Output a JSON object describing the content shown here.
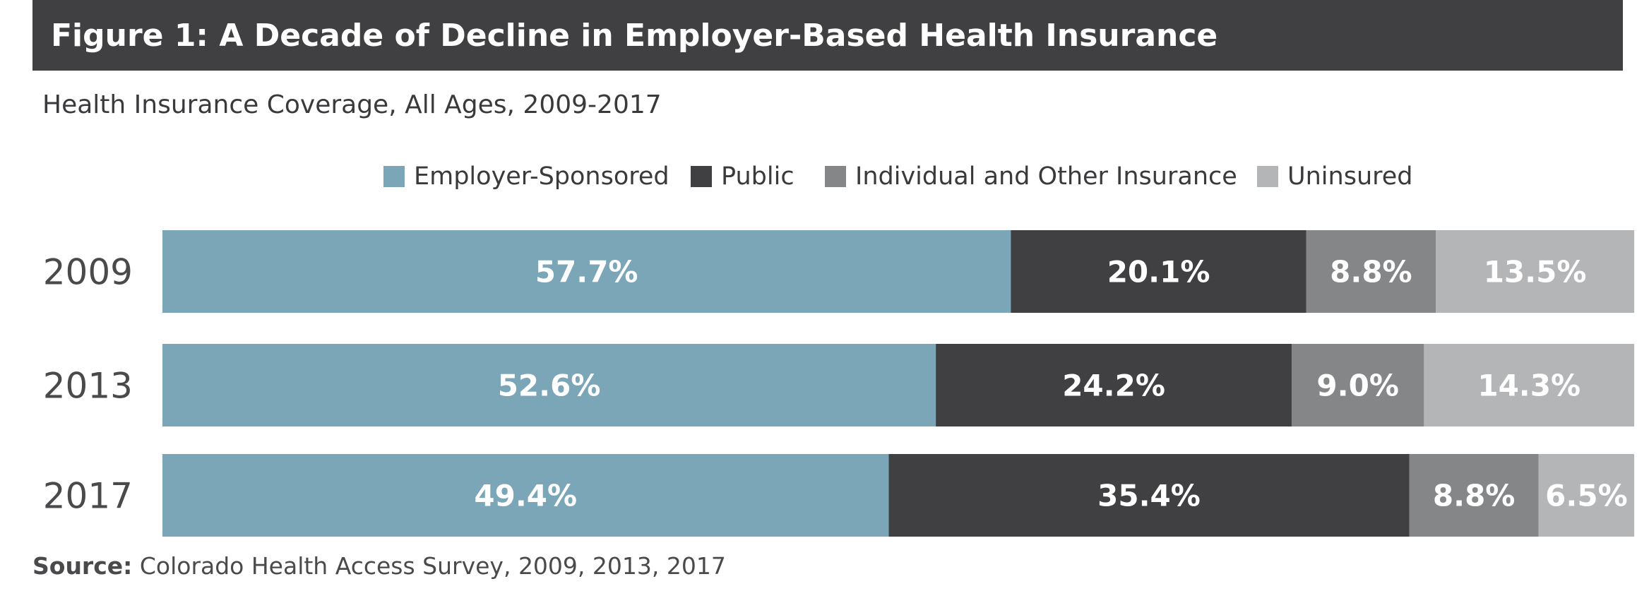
{
  "figure": {
    "title": "Figure 1: A Decade of Decline in Employer-Based Health Insurance",
    "subtitle": "Health Insurance Coverage, All Ages, 2009-2017"
  },
  "legend": {
    "items": [
      {
        "label": "Employer-Sponsored",
        "color": "#7aa6b8"
      },
      {
        "label": "Public",
        "color": "#404042"
      },
      {
        "label": "Individual and Other Insurance",
        "color": "#848688"
      },
      {
        "label": "Uninsured",
        "color": "#b4b5b7"
      }
    ]
  },
  "chart_data": {
    "type": "bar",
    "orientation": "horizontal",
    "stacked": true,
    "title": "Health Insurance Coverage, All Ages, 2009-2017",
    "categories": [
      "2009",
      "2013",
      "2017"
    ],
    "series": [
      {
        "name": "Employer-Sponsored",
        "values": [
          57.7,
          52.6,
          49.4
        ],
        "labels": [
          "57.7%",
          "52.6%",
          "49.4%"
        ],
        "color": "#7aa6b8"
      },
      {
        "name": "Public",
        "values": [
          20.1,
          24.2,
          35.4
        ],
        "labels": [
          "20.1%",
          "24.2%",
          "35.4%"
        ],
        "color": "#404042"
      },
      {
        "name": "Individual and Other Insurance",
        "values": [
          8.8,
          9.0,
          8.8
        ],
        "labels": [
          "8.8%",
          "9.0%",
          "8.8%"
        ],
        "color": "#848688"
      },
      {
        "name": "Uninsured",
        "values": [
          13.5,
          14.3,
          6.5
        ],
        "labels": [
          "13.5%",
          "14.3%",
          "6.5%"
        ],
        "color": "#b4b5b7"
      }
    ],
    "xlim": [
      0,
      100
    ],
    "grid": false,
    "legend_position": "top-center",
    "data_label_color": "#ffffff",
    "category_label_color": "#4a4a4c"
  },
  "source": {
    "label": "Source:",
    "text": " Colorado Health Access Survey, 2009, 2013, 2017"
  }
}
